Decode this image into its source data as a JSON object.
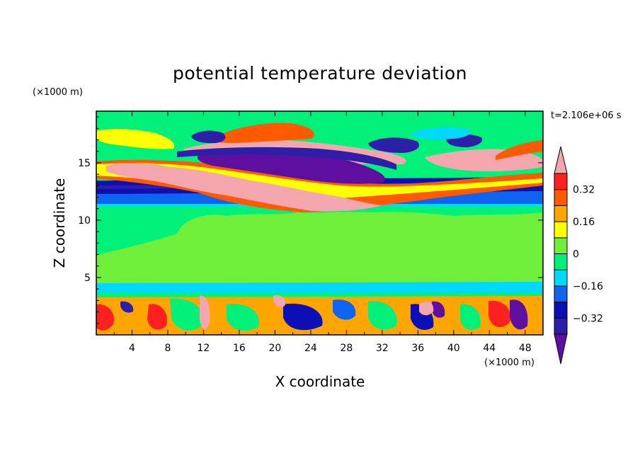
{
  "chart_data": {
    "type": "heatmap",
    "title": "potential temperature deviation",
    "xlabel": "X coordinate",
    "ylabel": "Z coordinate",
    "x_unit": "(×1000 m)",
    "y_unit": "(×1000 m)",
    "time_label": "t=2.106e+06 s",
    "xlim": [
      0,
      50
    ],
    "ylim": [
      0,
      19.5
    ],
    "x_ticks": [
      "4",
      "8",
      "12",
      "16",
      "20",
      "24",
      "28",
      "32",
      "36",
      "40",
      "44",
      "48"
    ],
    "y_ticks": [
      "5",
      "10",
      "15"
    ],
    "colorbar": {
      "labels": [
        "0.32",
        "0.16",
        "0",
        "−0.16",
        "−0.32"
      ],
      "label_values": [
        0.32,
        0.16,
        0,
        -0.16,
        -0.32
      ],
      "levels": [
        -0.4,
        -0.32,
        -0.24,
        -0.16,
        -0.08,
        0,
        0.08,
        0.16,
        0.24,
        0.32,
        0.4
      ],
      "colors": [
        "#5f0fa0",
        "#2d1fa8",
        "#0b0fb5",
        "#0e64f0",
        "#00d8ff",
        "#00f07a",
        "#6fef3a",
        "#ffff00",
        "#ffa500",
        "#ff5a00",
        "#ff2020",
        "#f4a6ae"
      ],
      "extend": "both"
    },
    "bands": [
      {
        "z_range": [
          0,
          3.5
        ],
        "value": "mixed",
        "description": ""
      },
      {
        "z_range": [
          3.5,
          11
        ],
        "value": 0.05
      },
      {
        "z_range": [
          11,
          12
        ],
        "value": -0.2
      },
      {
        "z_range": [
          12,
          13
        ],
        "value": -0.3
      },
      {
        "z_range": [
          13,
          16.5
        ],
        "value": 0.45
      },
      {
        "z_range": [
          16.5,
          19.5
        ],
        "value": 0.08
      }
    ],
    "grid": false,
    "legend": "colorbar-right"
  }
}
